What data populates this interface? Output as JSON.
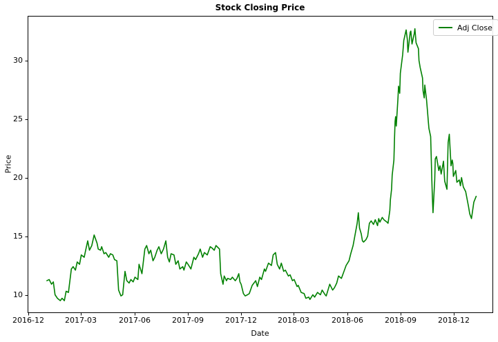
{
  "chart_data": {
    "type": "line",
    "title": "Stock Closing Price",
    "xlabel": "Date",
    "ylabel": "Price",
    "legend_position": "upper right",
    "grid": false,
    "line_color": "#008000",
    "axis_color": "#000000",
    "legend_border_color": "#cccccc",
    "background_color": "#ffffff",
    "x_ticks": [
      "2016-12",
      "2017-03",
      "2017-06",
      "2017-09",
      "2017-12",
      "2018-03",
      "2018-06",
      "2018-09",
      "2018-12"
    ],
    "y_ticks": [
      10,
      15,
      20,
      25,
      30
    ],
    "xlim": [
      "2016-11-30",
      "2019-02-05"
    ],
    "ylim": [
      8.5,
      33.8
    ],
    "series": [
      {
        "name": "Adj Close",
        "color": "#008000",
        "points": [
          [
            "2017-01-02",
            11.2
          ],
          [
            "2017-01-06",
            11.3
          ],
          [
            "2017-01-10",
            10.9
          ],
          [
            "2017-01-13",
            11.1
          ],
          [
            "2017-01-16",
            10.0
          ],
          [
            "2017-01-20",
            9.7
          ],
          [
            "2017-01-25",
            9.5
          ],
          [
            "2017-01-28",
            9.7
          ],
          [
            "2017-02-01",
            9.5
          ],
          [
            "2017-02-04",
            10.3
          ],
          [
            "2017-02-08",
            10.2
          ],
          [
            "2017-02-13",
            12.2
          ],
          [
            "2017-02-16",
            12.4
          ],
          [
            "2017-02-20",
            12.1
          ],
          [
            "2017-02-23",
            12.8
          ],
          [
            "2017-02-27",
            12.6
          ],
          [
            "2017-03-02",
            13.4
          ],
          [
            "2017-03-07",
            13.2
          ],
          [
            "2017-03-10",
            13.9
          ],
          [
            "2017-03-13",
            14.6
          ],
          [
            "2017-03-16",
            13.8
          ],
          [
            "2017-03-20",
            14.2
          ],
          [
            "2017-03-24",
            15.1
          ],
          [
            "2017-03-29",
            14.4
          ],
          [
            "2017-03-31",
            13.9
          ],
          [
            "2017-04-04",
            13.8
          ],
          [
            "2017-04-06",
            14.1
          ],
          [
            "2017-04-10",
            13.5
          ],
          [
            "2017-04-13",
            13.6
          ],
          [
            "2017-04-18",
            13.2
          ],
          [
            "2017-04-21",
            13.5
          ],
          [
            "2017-04-25",
            13.4
          ],
          [
            "2017-04-28",
            13.0
          ],
          [
            "2017-05-02",
            12.9
          ],
          [
            "2017-05-05",
            10.4
          ],
          [
            "2017-05-09",
            9.9
          ],
          [
            "2017-05-12",
            10.0
          ],
          [
            "2017-05-16",
            12.0
          ],
          [
            "2017-05-19",
            11.2
          ],
          [
            "2017-05-23",
            11.0
          ],
          [
            "2017-05-26",
            11.3
          ],
          [
            "2017-05-30",
            11.1
          ],
          [
            "2017-06-02",
            11.5
          ],
          [
            "2017-06-07",
            11.3
          ],
          [
            "2017-06-09",
            12.6
          ],
          [
            "2017-06-14",
            11.8
          ],
          [
            "2017-06-19",
            13.9
          ],
          [
            "2017-06-22",
            14.2
          ],
          [
            "2017-06-26",
            13.5
          ],
          [
            "2017-06-29",
            13.8
          ],
          [
            "2017-07-03",
            12.9
          ],
          [
            "2017-07-06",
            13.2
          ],
          [
            "2017-07-10",
            13.8
          ],
          [
            "2017-07-13",
            14.1
          ],
          [
            "2017-07-17",
            13.5
          ],
          [
            "2017-07-21",
            13.9
          ],
          [
            "2017-07-25",
            14.6
          ],
          [
            "2017-07-28",
            13.2
          ],
          [
            "2017-07-31",
            12.8
          ],
          [
            "2017-08-03",
            13.5
          ],
          [
            "2017-08-08",
            13.4
          ],
          [
            "2017-08-11",
            12.6
          ],
          [
            "2017-08-15",
            12.9
          ],
          [
            "2017-08-18",
            12.2
          ],
          [
            "2017-08-23",
            12.4
          ],
          [
            "2017-08-25",
            12.1
          ],
          [
            "2017-08-29",
            12.8
          ],
          [
            "2017-09-01",
            12.6
          ],
          [
            "2017-09-06",
            12.2
          ],
          [
            "2017-09-11",
            13.2
          ],
          [
            "2017-09-14",
            13.0
          ],
          [
            "2017-09-19",
            13.5
          ],
          [
            "2017-09-22",
            13.9
          ],
          [
            "2017-09-26",
            13.2
          ],
          [
            "2017-09-29",
            13.6
          ],
          [
            "2017-10-04",
            13.4
          ],
          [
            "2017-10-09",
            14.1
          ],
          [
            "2017-10-12",
            14.0
          ],
          [
            "2017-10-16",
            13.8
          ],
          [
            "2017-10-19",
            14.2
          ],
          [
            "2017-10-23",
            14.0
          ],
          [
            "2017-10-25",
            13.9
          ],
          [
            "2017-10-27",
            11.8
          ],
          [
            "2017-10-31",
            10.9
          ],
          [
            "2017-11-02",
            11.6
          ],
          [
            "2017-11-06",
            11.2
          ],
          [
            "2017-11-08",
            11.4
          ],
          [
            "2017-11-13",
            11.3
          ],
          [
            "2017-11-16",
            11.5
          ],
          [
            "2017-11-21",
            11.2
          ],
          [
            "2017-11-24",
            11.4
          ],
          [
            "2017-11-27",
            11.8
          ],
          [
            "2017-11-29",
            11.1
          ],
          [
            "2017-12-01",
            10.9
          ],
          [
            "2017-12-05",
            10.1
          ],
          [
            "2017-12-08",
            9.9
          ],
          [
            "2017-12-12",
            10.0
          ],
          [
            "2017-12-15",
            10.1
          ],
          [
            "2017-12-20",
            10.8
          ],
          [
            "2017-12-26",
            11.2
          ],
          [
            "2017-12-29",
            10.7
          ],
          [
            "2018-01-02",
            11.5
          ],
          [
            "2018-01-05",
            11.3
          ],
          [
            "2018-01-10",
            12.2
          ],
          [
            "2018-01-12",
            12.0
          ],
          [
            "2018-01-17",
            12.7
          ],
          [
            "2018-01-22",
            12.5
          ],
          [
            "2018-01-25",
            13.4
          ],
          [
            "2018-01-29",
            13.6
          ],
          [
            "2018-02-01",
            12.6
          ],
          [
            "2018-02-05",
            12.2
          ],
          [
            "2018-02-08",
            12.7
          ],
          [
            "2018-02-12",
            12.0
          ],
          [
            "2018-02-15",
            12.1
          ],
          [
            "2018-02-20",
            11.6
          ],
          [
            "2018-02-23",
            11.7
          ],
          [
            "2018-02-27",
            11.2
          ],
          [
            "2018-03-02",
            11.3
          ],
          [
            "2018-03-07",
            10.7
          ],
          [
            "2018-03-09",
            10.8
          ],
          [
            "2018-03-14",
            10.2
          ],
          [
            "2018-03-19",
            10.1
          ],
          [
            "2018-03-22",
            9.7
          ],
          [
            "2018-03-27",
            9.8
          ],
          [
            "2018-03-29",
            9.6
          ],
          [
            "2018-04-03",
            10.0
          ],
          [
            "2018-04-06",
            9.8
          ],
          [
            "2018-04-11",
            10.2
          ],
          [
            "2018-04-16",
            10.0
          ],
          [
            "2018-04-19",
            10.4
          ],
          [
            "2018-04-24",
            10.0
          ],
          [
            "2018-04-26",
            9.9
          ],
          [
            "2018-05-02",
            10.9
          ],
          [
            "2018-05-07",
            10.4
          ],
          [
            "2018-05-10",
            10.6
          ],
          [
            "2018-05-14",
            11.0
          ],
          [
            "2018-05-17",
            11.6
          ],
          [
            "2018-05-22",
            11.4
          ],
          [
            "2018-05-25",
            11.8
          ],
          [
            "2018-05-30",
            12.5
          ],
          [
            "2018-06-04",
            12.9
          ],
          [
            "2018-06-07",
            13.5
          ],
          [
            "2018-06-11",
            14.2
          ],
          [
            "2018-06-14",
            15.0
          ],
          [
            "2018-06-18",
            16.1
          ],
          [
            "2018-06-20",
            17.0
          ],
          [
            "2018-06-22",
            15.7
          ],
          [
            "2018-06-25",
            15.2
          ],
          [
            "2018-06-27",
            14.6
          ],
          [
            "2018-06-29",
            14.5
          ],
          [
            "2018-07-03",
            14.7
          ],
          [
            "2018-07-06",
            15.0
          ],
          [
            "2018-07-09",
            16.1
          ],
          [
            "2018-07-12",
            16.3
          ],
          [
            "2018-07-16",
            16.0
          ],
          [
            "2018-07-19",
            16.4
          ],
          [
            "2018-07-23",
            15.9
          ],
          [
            "2018-07-25",
            16.5
          ],
          [
            "2018-07-27",
            16.2
          ],
          [
            "2018-07-31",
            16.6
          ],
          [
            "2018-08-03",
            16.4
          ],
          [
            "2018-08-08",
            16.2
          ],
          [
            "2018-08-10",
            16.1
          ],
          [
            "2018-08-13",
            17.2
          ],
          [
            "2018-08-14",
            18.1
          ],
          [
            "2018-08-16",
            19.0
          ],
          [
            "2018-08-17",
            20.2
          ],
          [
            "2018-08-20",
            21.5
          ],
          [
            "2018-08-21",
            23.2
          ],
          [
            "2018-08-22",
            24.8
          ],
          [
            "2018-08-23",
            25.2
          ],
          [
            "2018-08-24",
            24.4
          ],
          [
            "2018-08-27",
            26.8
          ],
          [
            "2018-08-28",
            27.8
          ],
          [
            "2018-08-30",
            27.2
          ],
          [
            "2018-08-31",
            28.9
          ],
          [
            "2018-09-04",
            30.5
          ],
          [
            "2018-09-06",
            31.7
          ],
          [
            "2018-09-10",
            32.6
          ],
          [
            "2018-09-12",
            31.8
          ],
          [
            "2018-09-13",
            30.7
          ],
          [
            "2018-09-17",
            32.4
          ],
          [
            "2018-09-18",
            32.5
          ],
          [
            "2018-09-20",
            31.4
          ],
          [
            "2018-09-24",
            32.3
          ],
          [
            "2018-09-25",
            32.7
          ],
          [
            "2018-09-27",
            31.5
          ],
          [
            "2018-10-01",
            31.0
          ],
          [
            "2018-10-02",
            30.0
          ],
          [
            "2018-10-04",
            29.4
          ],
          [
            "2018-10-08",
            28.5
          ],
          [
            "2018-10-09",
            27.4
          ],
          [
            "2018-10-11",
            26.8
          ],
          [
            "2018-10-12",
            27.9
          ],
          [
            "2018-10-15",
            26.6
          ],
          [
            "2018-10-17",
            25.4
          ],
          [
            "2018-10-18",
            24.8
          ],
          [
            "2018-10-19",
            24.2
          ],
          [
            "2018-10-22",
            23.5
          ],
          [
            "2018-10-23",
            21.8
          ],
          [
            "2018-10-24",
            19.8
          ],
          [
            "2018-10-25",
            18.3
          ],
          [
            "2018-10-26",
            17.0
          ],
          [
            "2018-10-29",
            19.8
          ],
          [
            "2018-10-30",
            21.6
          ],
          [
            "2018-11-01",
            21.8
          ],
          [
            "2018-11-05",
            20.6
          ],
          [
            "2018-11-07",
            21.0
          ],
          [
            "2018-11-09",
            20.3
          ],
          [
            "2018-11-13",
            21.4
          ],
          [
            "2018-11-15",
            19.7
          ],
          [
            "2018-11-19",
            19.0
          ],
          [
            "2018-11-21",
            23.0
          ],
          [
            "2018-11-23",
            23.7
          ],
          [
            "2018-11-26",
            21.0
          ],
          [
            "2018-11-28",
            21.5
          ],
          [
            "2018-11-29",
            21.2
          ],
          [
            "2018-11-30",
            20.1
          ],
          [
            "2018-12-04",
            20.6
          ],
          [
            "2018-12-06",
            19.6
          ],
          [
            "2018-12-10",
            19.8
          ],
          [
            "2018-12-12",
            19.3
          ],
          [
            "2018-12-14",
            20.0
          ],
          [
            "2018-12-17",
            19.2
          ],
          [
            "2018-12-21",
            18.8
          ],
          [
            "2018-12-26",
            17.5
          ],
          [
            "2018-12-28",
            16.9
          ],
          [
            "2018-12-31",
            16.5
          ],
          [
            "2019-01-04",
            17.9
          ],
          [
            "2019-01-08",
            18.4
          ]
        ]
      }
    ]
  }
}
